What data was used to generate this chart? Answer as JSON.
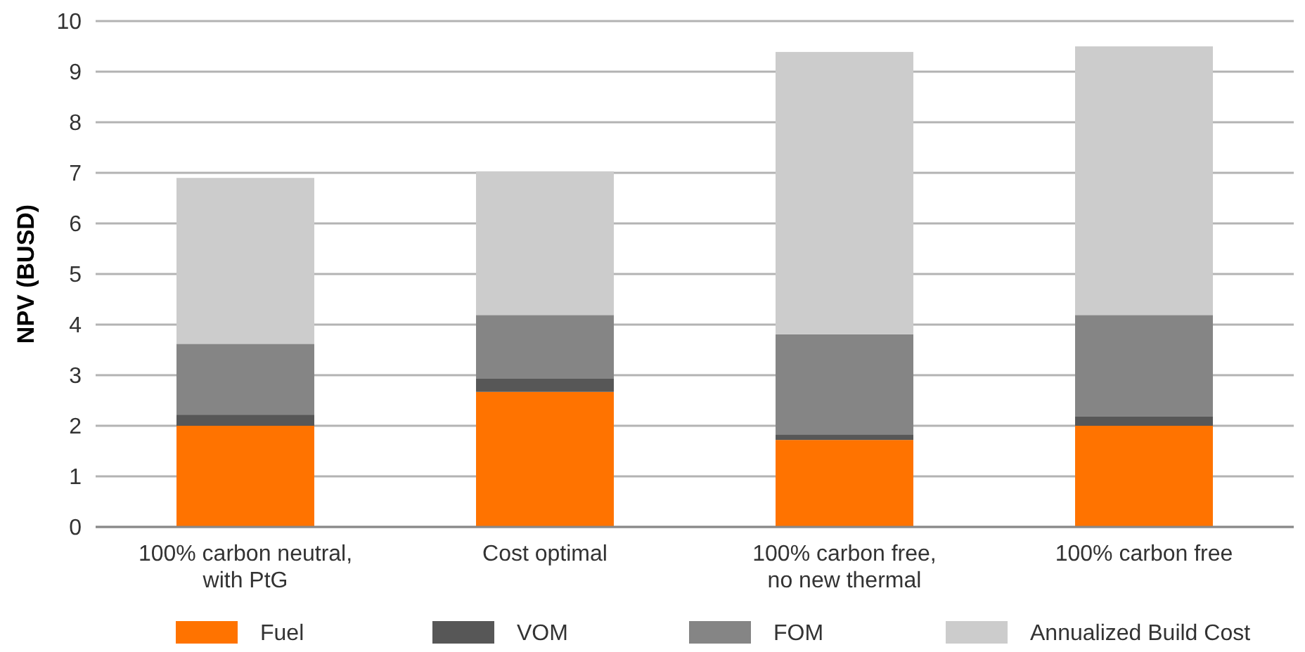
{
  "chart_data": {
    "type": "bar",
    "stacked": true,
    "ylabel": "NPV (BUSD)",
    "categories": [
      "100% carbon neutral,\nwith PtG",
      "Cost optimal",
      "100% carbon free,\nno new thermal",
      "100% carbon free"
    ],
    "series": [
      {
        "name": "Fuel",
        "color": "#ff7300",
        "values": [
          2.0,
          2.67,
          1.72,
          2.0
        ]
      },
      {
        "name": "VOM",
        "color": "#575757",
        "values": [
          0.22,
          0.27,
          0.11,
          0.19
        ]
      },
      {
        "name": "FOM",
        "color": "#858585",
        "values": [
          1.4,
          1.25,
          1.98,
          2.0
        ]
      },
      {
        "name": "Annualized Build Cost",
        "color": "#cccccc",
        "values": [
          3.28,
          2.84,
          5.58,
          5.31
        ]
      }
    ],
    "ylim": [
      0,
      10
    ],
    "yticks": [
      0,
      1,
      2,
      3,
      4,
      5,
      6,
      7,
      8,
      9,
      10
    ],
    "grid": "y",
    "legend": "bottom"
  }
}
